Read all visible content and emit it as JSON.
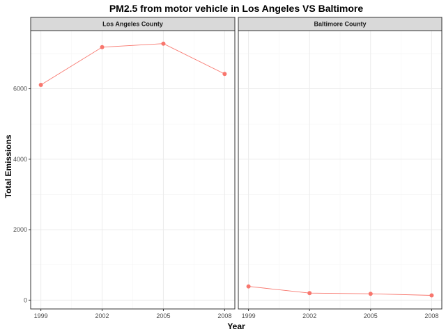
{
  "colors": {
    "series": "#f8766d",
    "strip_bg": "#d9d9d9",
    "grid_major": "#ebebeb",
    "grid_minor": "#f5f5f5",
    "panel_border": "#333333"
  },
  "chart_data": {
    "type": "line",
    "title": "PM2.5 from motor vehicle in Los Angeles VS Baltimore",
    "xlabel": "Year",
    "ylabel": "Total Emissions",
    "x": [
      1999,
      2002,
      2005,
      2008
    ],
    "x_ticks": [
      "1999",
      "2002",
      "2005",
      "2008"
    ],
    "y_ticks": [
      "0",
      "2000",
      "4000",
      "6000"
    ],
    "xlim": [
      1998.5,
      2008.5
    ],
    "ylim": [
      -250,
      7650
    ],
    "grid": true,
    "legend": "none",
    "facets": [
      {
        "strip": "Los Angeles County",
        "values": [
          6110,
          7180,
          7280,
          6420
        ]
      },
      {
        "strip": "Baltimore County",
        "values": [
          390,
          200,
          180,
          135
        ]
      }
    ]
  }
}
